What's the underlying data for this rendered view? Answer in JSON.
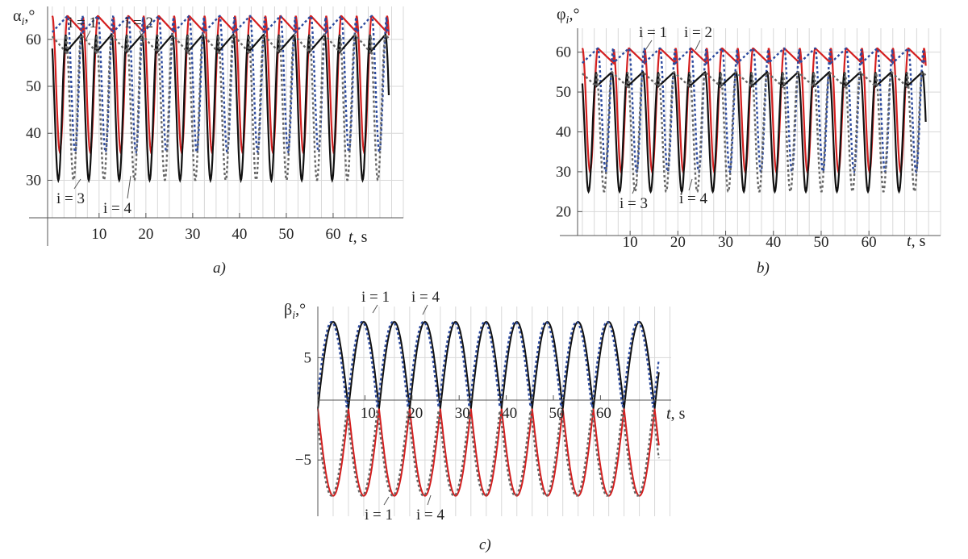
{
  "panels": [
    {
      "id": "a",
      "caption": "a)",
      "ylabel_sym": "α",
      "ylabel_sub": "i",
      "ylabel_unit": ",°",
      "xlabel_var": "t",
      "xlabel_unit": ", s",
      "xticks": [
        "10",
        "20",
        "30",
        "40",
        "50",
        "60"
      ],
      "yticks": [
        "30",
        "40",
        "50",
        "60"
      ],
      "labels": [
        "i = 1",
        "i = 2",
        "i = 3",
        "i = 4"
      ],
      "chart_data": {
        "type": "line",
        "xlim": [
          -1,
          75
        ],
        "ylim": [
          16,
          67
        ],
        "period": 6.5,
        "series": [
          {
            "label": "i = 1",
            "color": "#d41f1f",
            "style": "solid",
            "min": 36,
            "max": 65
          },
          {
            "label": "i = 2",
            "color": "#2c4a9e",
            "style": "dotted",
            "min": 36,
            "max": 65
          },
          {
            "label": "i = 3",
            "color": "#111111",
            "style": "solid",
            "min": 30,
            "max": 61
          },
          {
            "label": "i = 4",
            "color": "#666666",
            "style": "dotted",
            "min": 30,
            "max": 61
          }
        ]
      }
    },
    {
      "id": "b",
      "caption": "b)",
      "ylabel_sym": "φ",
      "ylabel_sub": "i",
      "ylabel_unit": ",°",
      "xlabel_var": "t",
      "xlabel_unit": ", s",
      "xticks": [
        "10",
        "20",
        "30",
        "40",
        "50",
        "60"
      ],
      "yticks": [
        "20",
        "30",
        "40",
        "50",
        "60"
      ],
      "labels": [
        "i = 1",
        "i = 2",
        "i = 3",
        "i = 4"
      ],
      "chart_data": {
        "type": "line",
        "xlim": [
          -1,
          75
        ],
        "ylim": [
          14,
          66
        ],
        "period": 6.5,
        "series": [
          {
            "label": "i = 1",
            "color": "#d41f1f",
            "style": "solid",
            "min": 30,
            "max": 61
          },
          {
            "label": "i = 2",
            "color": "#2c4a9e",
            "style": "dotted",
            "min": 30,
            "max": 61
          },
          {
            "label": "i = 3",
            "color": "#111111",
            "style": "solid",
            "min": 25,
            "max": 55
          },
          {
            "label": "i = 4",
            "color": "#666666",
            "style": "dotted",
            "min": 25,
            "max": 55
          }
        ]
      }
    },
    {
      "id": "c",
      "caption": "c)",
      "ylabel_sym": "β",
      "ylabel_sub": "i",
      "ylabel_unit": ",°",
      "xlabel_var": "t",
      "xlabel_unit": ", s",
      "xticks": [
        "10",
        "20",
        "30",
        "40",
        "50",
        "60"
      ],
      "yticks": [
        "5",
        "−5"
      ],
      "labels_top": [
        "i = 1",
        "i = 4"
      ],
      "labels_bottom": [
        "i = 1",
        "i = 4"
      ],
      "chart_data": {
        "type": "line",
        "xlim": [
          0,
          75
        ],
        "ylim": [
          -10.5,
          10
        ],
        "period": 6.5,
        "series": [
          {
            "label": "i = 1",
            "color": "#111111",
            "style": "solid",
            "amplitude": 8.5,
            "sign": 1
          },
          {
            "label": "i = 4",
            "color": "#2c4a9e",
            "style": "dotted",
            "amplitude": 8.5,
            "sign": 1
          },
          {
            "label": "i = 1",
            "color": "#d41f1f",
            "style": "solid",
            "amplitude": 8.5,
            "sign": -1
          },
          {
            "label": "i = 4",
            "color": "#666666",
            "style": "dotted",
            "amplitude": 8.5,
            "sign": -1
          }
        ]
      }
    }
  ]
}
